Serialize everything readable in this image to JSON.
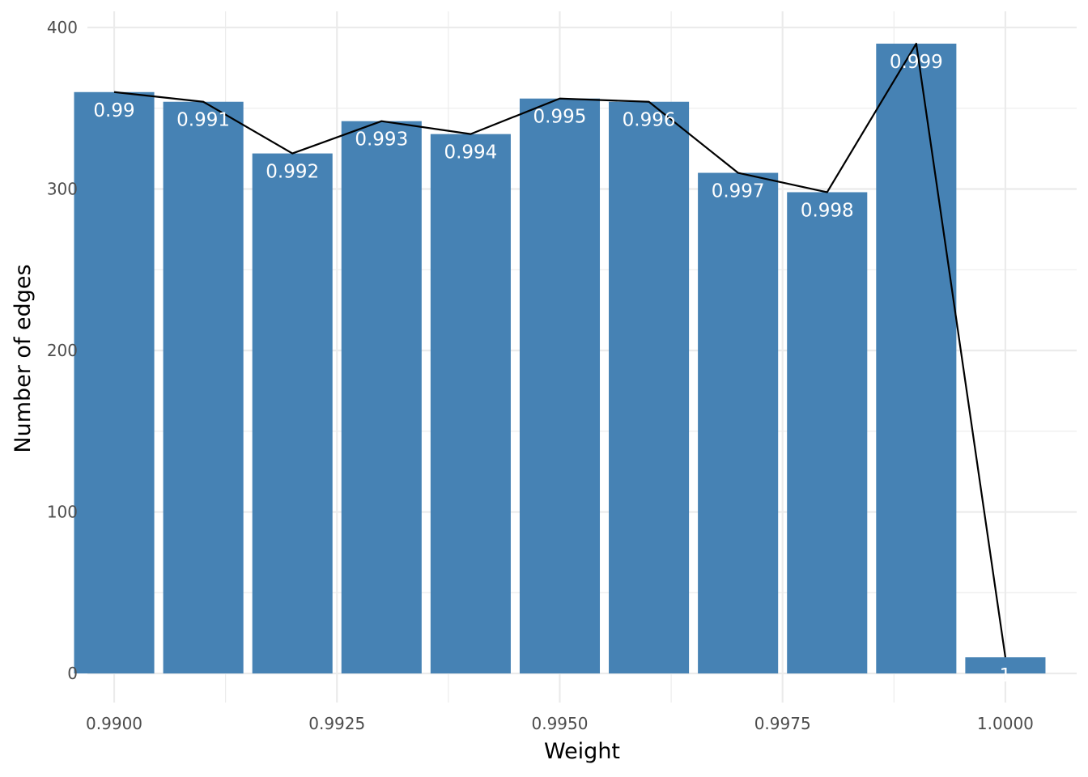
{
  "chart_data": {
    "type": "bar",
    "xlabel": "Weight",
    "ylabel": "Number of edges",
    "x": [
      0.99,
      0.991,
      0.992,
      0.993,
      0.994,
      0.995,
      0.996,
      0.997,
      0.998,
      0.999,
      1.0
    ],
    "values": [
      360,
      354,
      322,
      342,
      334,
      356,
      354,
      310,
      298,
      390,
      10
    ],
    "bar_labels": [
      "0.99",
      "0.991",
      "0.992",
      "0.993",
      "0.994",
      "0.995",
      "0.996",
      "0.997",
      "0.998",
      "0.999",
      "1"
    ],
    "overlay_line": true,
    "xlim": [
      0.9897,
      1.0008
    ],
    "ylim": [
      -18,
      410
    ],
    "x_ticks": [
      0.99,
      0.9925,
      0.995,
      0.9975,
      1.0
    ],
    "x_tick_labels": [
      "0.9900",
      "0.9925",
      "0.9950",
      "0.9975",
      "1.0000"
    ],
    "y_ticks": [
      0,
      100,
      200,
      300,
      400
    ],
    "y_tick_labels": [
      "0",
      "100",
      "200",
      "300",
      "400"
    ],
    "grid": true,
    "bar_color": "#4682b4",
    "line_color": "#000000",
    "grid_color": "#ebebeb"
  }
}
